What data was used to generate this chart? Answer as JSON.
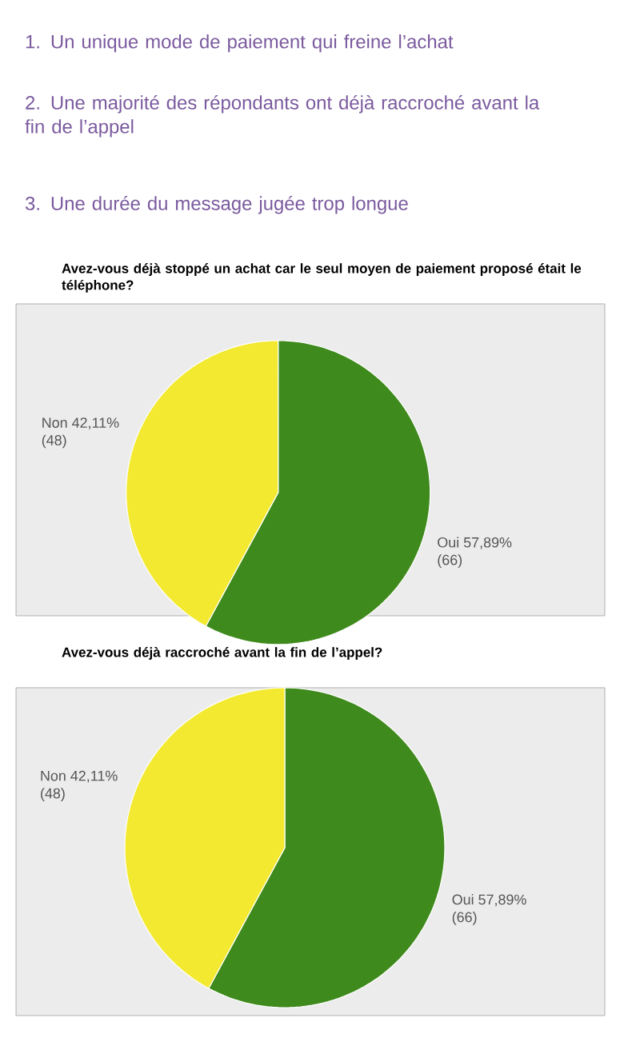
{
  "chart_data": [
    {
      "type": "pie",
      "annotations": [
        "1. Un unique mode de paiement qui freine l’achat",
        "2. Une majorité des répondants ont déjà raccroché avant la fin de l’appel",
        "3. Une durée du message jugée trop longue",
        {
          "text": "(66)",
          "x": "Oui"
        },
        {
          "text": "(48)",
          "x": "Non"
        }
      ],
      "title": "Avez-vous déjà stoppé un achat car le seul moyen de paiement proposé était le téléphone?",
      "categories": [
        "Oui",
        "Non"
      ],
      "values": [
        57.89,
        42.11
      ],
      "value_labels": [
        "57,89%",
        "42,11%"
      ],
      "colors": [
        "#3f8a1c",
        "#f2e930"
      ]
    },
    {
      "type": "pie",
      "annotations": [
        {
          "text": "(66)",
          "x": "Oui"
        },
        {
          "text": "(48)",
          "x": "Non"
        }
      ],
      "title": "Avez-vous déjà raccroché avant la fin de l’appel?",
      "categories": [
        "Oui",
        "Non"
      ],
      "values": [
        57.89,
        42.11
      ],
      "value_labels": [
        "57,89%",
        "42,11%"
      ],
      "colors": [
        "#3f8a1c",
        "#f2e930"
      ]
    }
  ]
}
